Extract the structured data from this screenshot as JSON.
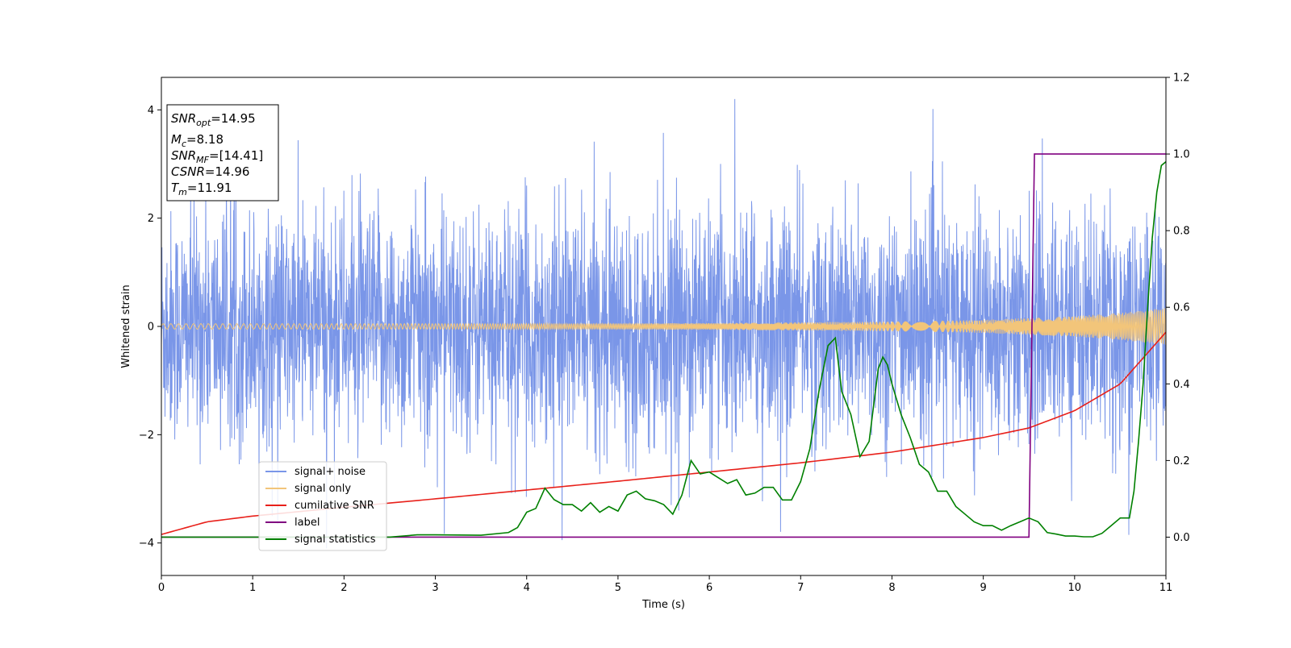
{
  "chart_data": {
    "type": "line",
    "xlabel": "Time (s)",
    "ylabel": "Whitened strain",
    "xlim": [
      0,
      11
    ],
    "ylim_left": [
      -4.6,
      4.6
    ],
    "ylim_right": [
      -0.1,
      1.2
    ],
    "x_ticks": [
      0,
      1,
      2,
      3,
      4,
      5,
      6,
      7,
      8,
      9,
      10,
      11
    ],
    "y_ticks_left": [
      -4,
      -2,
      0,
      2,
      4
    ],
    "y_ticks_right": [
      "0.0",
      "0.2",
      "0.4",
      "0.6",
      "0.8",
      "1.0",
      "1.2"
    ],
    "grid": false,
    "legend_position": "lower-left",
    "annotation": {
      "snr_opt": {
        "base": "SNR",
        "sub": "opt",
        "value": "=14.95"
      },
      "mc": {
        "base": "M",
        "sub": "c",
        "value": "=8.18"
      },
      "snr_mf": {
        "base": "SNR",
        "sub": "MF",
        "value": "=[14.41]"
      },
      "csnr": {
        "base": "CSNR",
        "value": "=14.96"
      },
      "tm": {
        "base": "T",
        "sub": "m",
        "value": "=11.91"
      }
    },
    "series": [
      {
        "name": "signal+ noise",
        "axis": "left",
        "color": "#7a96e8",
        "description_values": {
          "amplitude_typical": 1.5,
          "amplitude_peak": 4.2
        }
      },
      {
        "name": "signal only",
        "axis": "left",
        "color": "#f2c57a",
        "envelope": {
          "x": [
            0,
            2,
            4,
            6,
            8,
            9,
            10,
            10.5,
            11
          ],
          "amp": [
            0.05,
            0.05,
            0.05,
            0.06,
            0.09,
            0.12,
            0.19,
            0.25,
            0.34
          ]
        }
      },
      {
        "name": "cumilative SNR",
        "axis": "right",
        "color": "#e8201a",
        "x": [
          0,
          0.5,
          1,
          2,
          3,
          4,
          5,
          6,
          7,
          8,
          9,
          9.5,
          10,
          10.5,
          11
        ],
        "y": [
          0.007,
          0.04,
          0.055,
          0.078,
          0.1,
          0.123,
          0.146,
          0.17,
          0.194,
          0.222,
          0.26,
          0.285,
          0.33,
          0.4,
          0.535
        ]
      },
      {
        "name": "label",
        "axis": "right",
        "color": "#800080",
        "x": [
          0,
          9.5,
          9.56,
          11
        ],
        "y": [
          0,
          0,
          1,
          1
        ]
      },
      {
        "name": "signal statistics",
        "axis": "right",
        "color": "#008000",
        "x": [
          0,
          2.5,
          2.8,
          3,
          3.5,
          3.8,
          3.9,
          4.0,
          4.1,
          4.2,
          4.3,
          4.4,
          4.5,
          4.6,
          4.7,
          4.8,
          4.9,
          5.0,
          5.1,
          5.2,
          5.3,
          5.4,
          5.5,
          5.6,
          5.7,
          5.8,
          5.9,
          6.0,
          6.1,
          6.2,
          6.3,
          6.4,
          6.5,
          6.6,
          6.7,
          6.8,
          6.9,
          7.0,
          7.1,
          7.2,
          7.3,
          7.38,
          7.45,
          7.55,
          7.65,
          7.75,
          7.85,
          7.9,
          7.95,
          8.0,
          8.1,
          8.2,
          8.3,
          8.4,
          8.5,
          8.6,
          8.7,
          8.8,
          8.9,
          9.0,
          9.1,
          9.2,
          9.3,
          9.4,
          9.5,
          9.6,
          9.7,
          9.8,
          9.9,
          10.0,
          10.1,
          10.2,
          10.3,
          10.4,
          10.5,
          10.6,
          10.65,
          10.7,
          10.75,
          10.8,
          10.85,
          10.9,
          10.95,
          11.0
        ],
        "y": [
          0.0,
          0.0,
          0.006,
          0.006,
          0.005,
          0.012,
          0.025,
          0.065,
          0.075,
          0.128,
          0.098,
          0.085,
          0.085,
          0.068,
          0.09,
          0.065,
          0.08,
          0.068,
          0.11,
          0.12,
          0.1,
          0.095,
          0.085,
          0.06,
          0.11,
          0.2,
          0.165,
          0.17,
          0.155,
          0.14,
          0.15,
          0.11,
          0.115,
          0.13,
          0.13,
          0.097,
          0.097,
          0.145,
          0.23,
          0.38,
          0.5,
          0.52,
          0.38,
          0.32,
          0.21,
          0.25,
          0.44,
          0.47,
          0.45,
          0.4,
          0.32,
          0.26,
          0.19,
          0.17,
          0.12,
          0.12,
          0.08,
          0.06,
          0.04,
          0.03,
          0.03,
          0.018,
          0.03,
          0.04,
          0.05,
          0.04,
          0.012,
          0.008,
          0.003,
          0.003,
          0.001,
          0.001,
          0.01,
          0.03,
          0.05,
          0.05,
          0.12,
          0.25,
          0.4,
          0.6,
          0.78,
          0.9,
          0.97,
          0.98
        ]
      }
    ]
  }
}
